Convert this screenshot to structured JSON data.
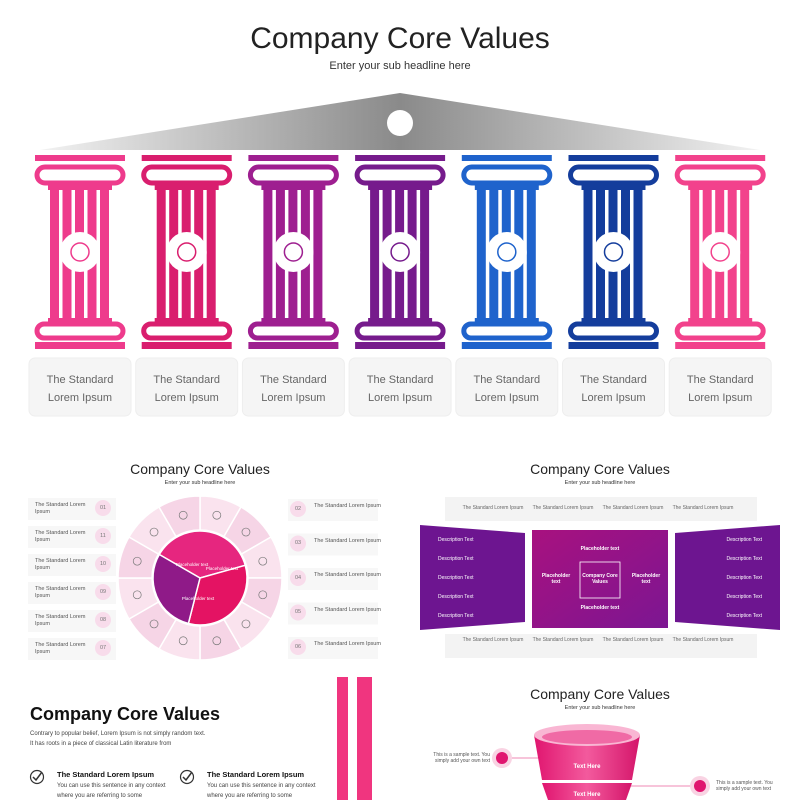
{
  "main": {
    "title": "Company Core Values",
    "subtitle": "Enter your sub headline here",
    "pillars": [
      {
        "line1": "The Standard",
        "line2": "Lorem Ipsum",
        "color": "#ee3b8c"
      },
      {
        "line1": "The Standard",
        "line2": "Lorem Ipsum",
        "color": "#d91e6e"
      },
      {
        "line1": "The Standard",
        "line2": "Lorem Ipsum",
        "color": "#9e1f90"
      },
      {
        "line1": "The Standard",
        "line2": "Lorem Ipsum",
        "color": "#761b8c"
      },
      {
        "line1": "The Standard",
        "line2": "Lorem Ipsum",
        "color": "#1f63cc"
      },
      {
        "line1": "The Standard",
        "line2": "Lorem Ipsum",
        "color": "#143d9c"
      },
      {
        "line1": "The Standard",
        "line2": "Lorem Ipsum",
        "color": "#f2428c"
      }
    ]
  },
  "wheel": {
    "title": "Company Core Values",
    "subtitle": "Enter your sub headline here",
    "left_items": [
      {
        "num": "01",
        "text": "The Standard Lorem Ipsum"
      },
      {
        "num": "11",
        "text": "The Standard Lorem Ipsum"
      },
      {
        "num": "10",
        "text": "The Standard Lorem Ipsum"
      },
      {
        "num": "09",
        "text": "The Standard Lorem Ipsum"
      },
      {
        "num": "08",
        "text": "The Standard Lorem Ipsum"
      },
      {
        "num": "07",
        "text": "The Standard Lorem Ipsum"
      }
    ],
    "right_items": [
      {
        "num": "02",
        "text": "The Standard Lorem Ipsum"
      },
      {
        "num": "03",
        "text": "The Standard Lorem Ipsum"
      },
      {
        "num": "04",
        "text": "The Standard Lorem Ipsum"
      },
      {
        "num": "05",
        "text": "The Standard Lorem Ipsum"
      },
      {
        "num": "06",
        "text": "The Standard Lorem Ipsum"
      }
    ],
    "center": [
      "Placeholder text",
      "Placeholder text",
      "Placeholder text"
    ]
  },
  "panels": {
    "title": "Company Core Values",
    "subtitle": "Enter your sub headline here",
    "top_boxes": [
      "The Standard Lorem Ipsum",
      "The Standard Lorem Ipsum",
      "The Standard Lorem Ipsum",
      "The Standard Lorem Ipsum"
    ],
    "left": [
      "Description Text",
      "Description Text",
      "Description Text",
      "Description Text",
      "Description Text"
    ],
    "center": {
      "top": "Placeholder text",
      "left": "Placeholder text",
      "right": "Placeholder text",
      "bottom": "Placeholder text",
      "core": "Company Core Values"
    },
    "right": [
      "Description Text",
      "Description Text",
      "Description Text",
      "Description Text",
      "Description Text"
    ],
    "bottom_boxes": [
      "The Standard Lorem Ipsum",
      "The Standard Lorem Ipsum",
      "The Standard Lorem Ipsum",
      "The Standard Lorem Ipsum"
    ]
  },
  "checklist": {
    "title": "Company Core Values",
    "paragraph": "Contrary to popular belief, Lorem Ipsum is not simply random text. It has roots in a piece of classical Latin literature from",
    "items": [
      {
        "title": "The Standard Lorem Ipsum",
        "text": "You can use this sentence in any context where you are referring to some"
      },
      {
        "title": "The Standard Lorem Ipsum",
        "text": "You can use this sentence in any context where you are referring to some"
      }
    ]
  },
  "funnel": {
    "title": "Company Core Values",
    "subtitle": "Enter your sub headline here",
    "layers": [
      "Text Here",
      "Text Here"
    ],
    "left_note": "This is a sample text. You simply add your own text",
    "right_note": "This is a sample text. You simply add your own text"
  }
}
